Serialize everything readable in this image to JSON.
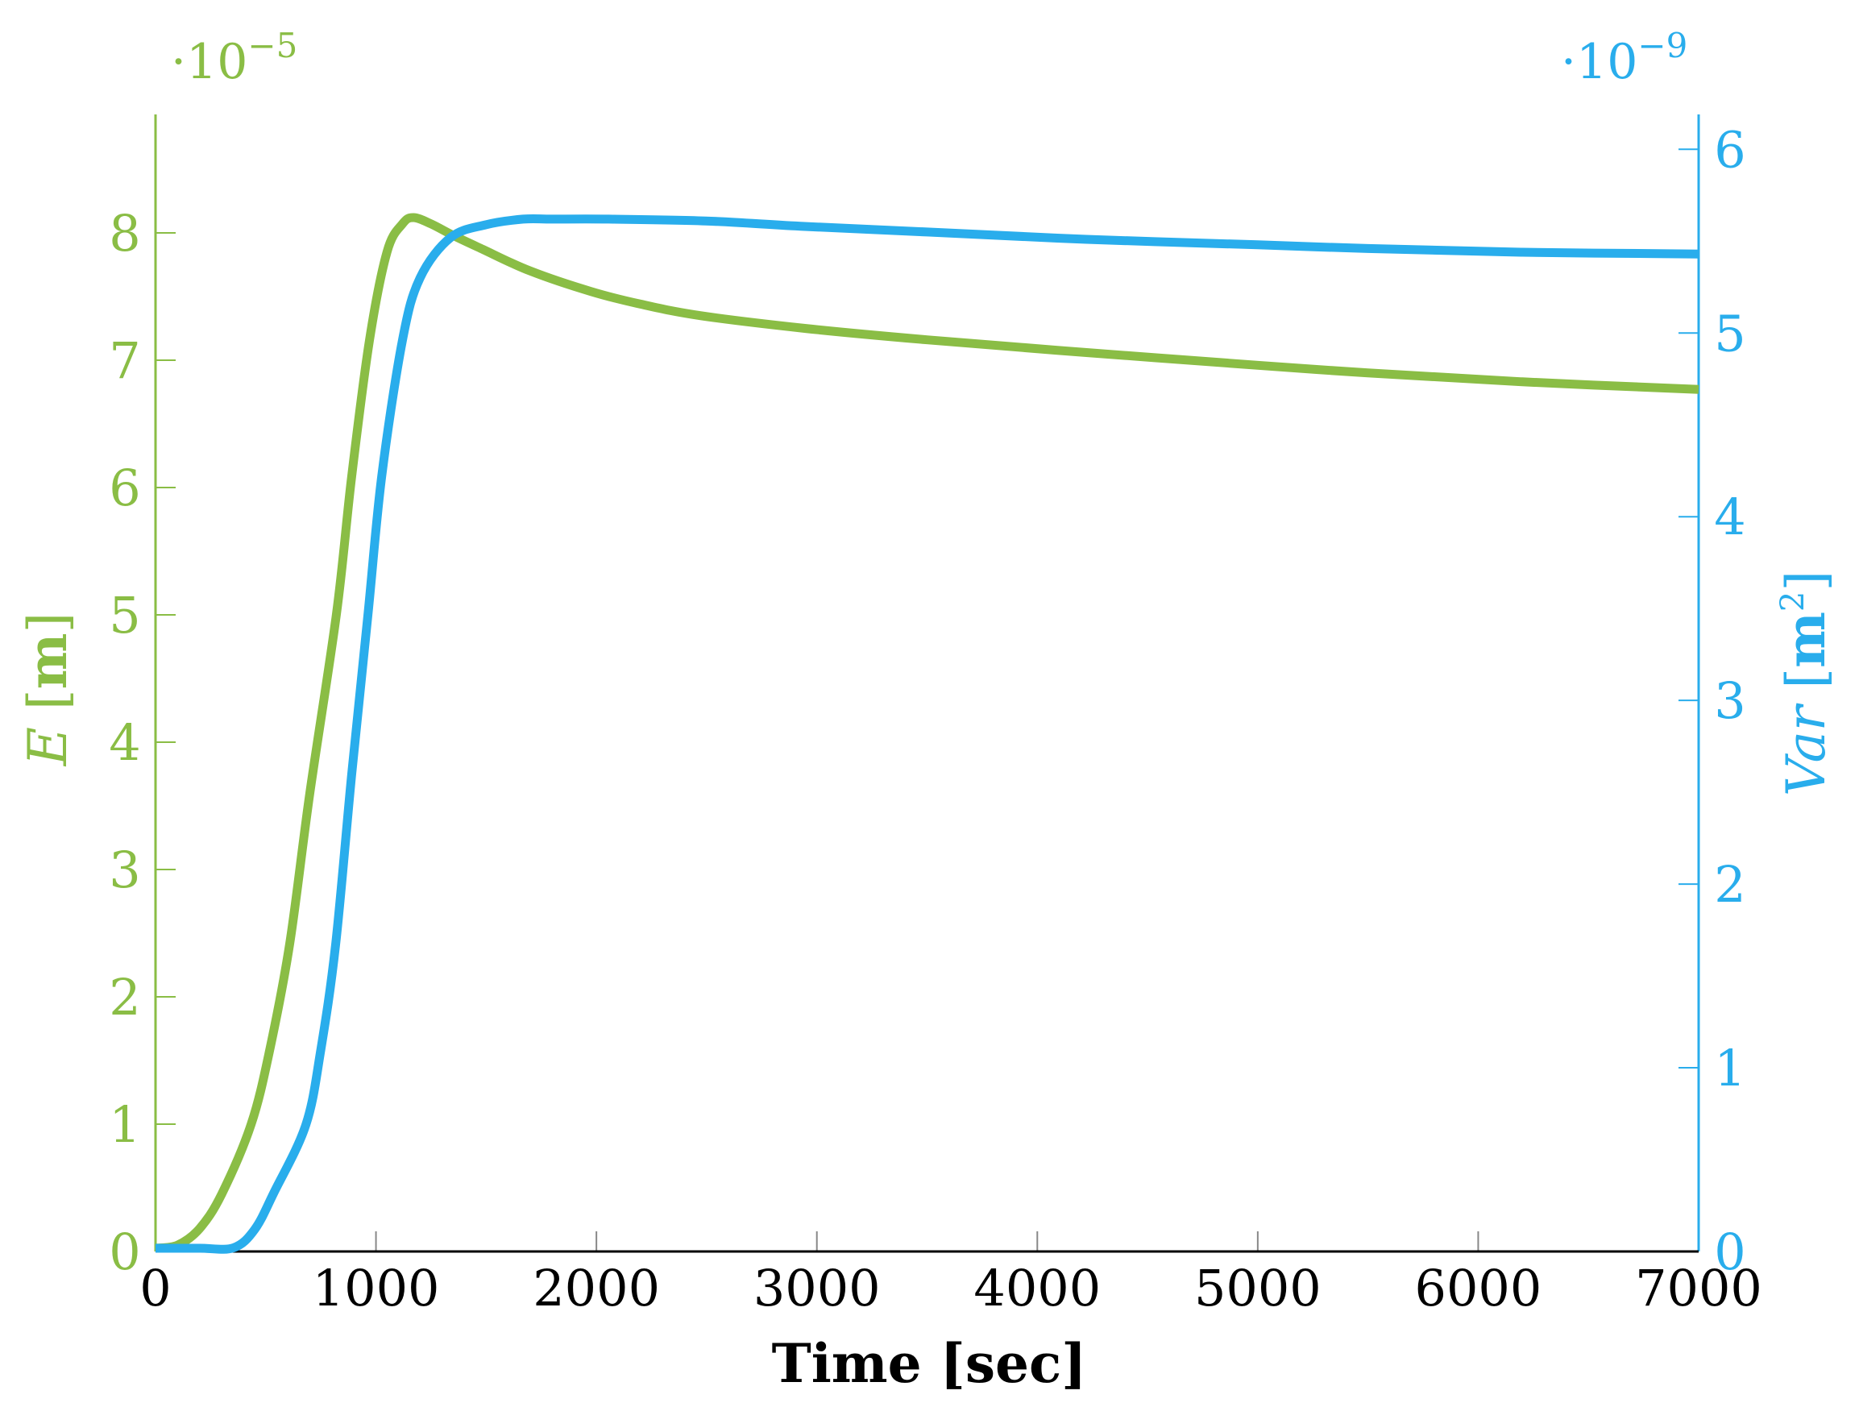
{
  "colors": {
    "left_series": "#8ABD45",
    "right_series": "#29ADEC",
    "x_axis": "#000000",
    "tick_x": "#888888",
    "background": "#ffffff"
  },
  "chart_data": {
    "type": "line",
    "title": "",
    "xlabel": "Time [sec]",
    "x_ticks": [
      0,
      1000,
      2000,
      3000,
      4000,
      5000,
      6000,
      7000
    ],
    "xlim": [
      0,
      7000
    ],
    "grid": false,
    "legend": null,
    "left_axis": {
      "label": "E [m]",
      "label_italic_part": "E",
      "label_unit": "m",
      "multiplier": "·10",
      "multiplier_exponent": "−5",
      "ticks": [
        0,
        1,
        2,
        3,
        4,
        5,
        6,
        7,
        8
      ],
      "ylim": [
        0,
        8.93
      ],
      "color": "#8ABD45"
    },
    "right_axis": {
      "label": "Var [m²]",
      "label_italic_part": "Var",
      "label_unit": "m",
      "label_unit_exponent": "2",
      "multiplier": "·10",
      "multiplier_exponent": "−9",
      "ticks": [
        0,
        1,
        2,
        3,
        4,
        5,
        6
      ],
      "ylim": [
        0,
        6.19
      ],
      "color": "#29ADEC"
    },
    "series": [
      {
        "name": "E",
        "axis": "left",
        "scale": "1e-5",
        "color": "#8ABD45",
        "x": [
          0,
          100,
          200,
          300,
          434,
          520,
          609,
          700,
          821,
          890,
          971,
          1050,
          1120,
          1170,
          1250,
          1350,
          1485,
          1700,
          1974,
          2200,
          2471,
          2945,
          3500,
          4223,
          5000,
          5500,
          6200,
          7000
        ],
        "values": [
          0,
          0.05,
          0.18,
          0.45,
          1.0,
          1.6,
          2.42,
          3.6,
          5.01,
          6.09,
          7.16,
          7.85,
          8.07,
          8.12,
          8.07,
          7.98,
          7.87,
          7.7,
          7.54,
          7.44,
          7.35,
          7.25,
          7.16,
          7.06,
          6.96,
          6.9,
          6.83,
          6.77
        ]
      },
      {
        "name": "Var",
        "axis": "right",
        "scale": "1e-9",
        "color": "#29ADEC",
        "x": [
          0,
          200,
          354,
          450,
          537,
          682,
          750,
          817,
          890,
          964,
          1026,
          1120,
          1200,
          1339,
          1500,
          1668,
          1800,
          2055,
          2496,
          2945,
          3500,
          4223,
          5000,
          5500,
          6200,
          7000
        ],
        "values": [
          0,
          0.0,
          0.02,
          0.12,
          0.32,
          0.69,
          1.1,
          1.67,
          2.6,
          3.47,
          4.22,
          4.96,
          5.3,
          5.52,
          5.59,
          5.62,
          5.62,
          5.62,
          5.61,
          5.58,
          5.55,
          5.51,
          5.48,
          5.46,
          5.44,
          5.43
        ]
      }
    ]
  }
}
